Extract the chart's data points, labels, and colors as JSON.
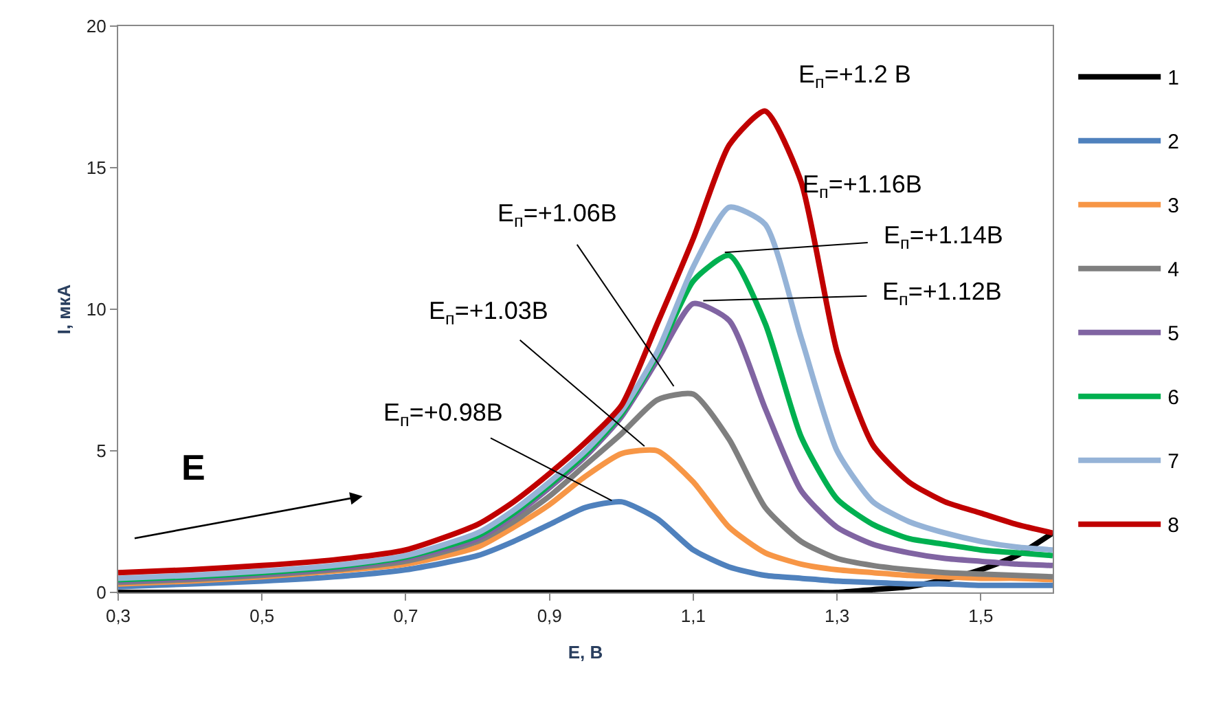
{
  "chart_data": {
    "type": "line",
    "xlabel": "E, В",
    "ylabel": "I, мкА",
    "x": [
      0.3,
      0.4,
      0.5,
      0.6,
      0.7,
      0.8,
      0.85,
      0.9,
      0.95,
      1.0,
      1.05,
      1.1,
      1.15,
      1.2,
      1.25,
      1.3,
      1.35,
      1.4,
      1.45,
      1.5,
      1.55,
      1.6
    ],
    "series": [
      {
        "name": "1",
        "color": "#000000",
        "values": [
          0,
          0,
          0,
          0,
          0,
          0,
          0,
          0,
          0,
          0,
          0,
          0,
          0,
          0,
          0,
          0,
          0.1,
          0.2,
          0.45,
          0.8,
          1.3,
          2.1
        ]
      },
      {
        "name": "2",
        "color": "#4f81bd",
        "values": [
          0.2,
          0.3,
          0.4,
          0.55,
          0.8,
          1.3,
          1.8,
          2.4,
          3.0,
          3.2,
          2.6,
          1.5,
          0.9,
          0.6,
          0.5,
          0.4,
          0.35,
          0.3,
          0.3,
          0.25,
          0.25,
          0.25
        ]
      },
      {
        "name": "3",
        "color": "#f79646",
        "values": [
          0.3,
          0.4,
          0.55,
          0.75,
          1.0,
          1.6,
          2.3,
          3.1,
          4.1,
          4.9,
          5.0,
          3.9,
          2.3,
          1.4,
          1.0,
          0.8,
          0.7,
          0.6,
          0.55,
          0.5,
          0.5,
          0.45
        ]
      },
      {
        "name": "4",
        "color": "#7f7f7f",
        "values": [
          0.35,
          0.45,
          0.6,
          0.8,
          1.1,
          1.8,
          2.5,
          3.4,
          4.5,
          5.6,
          6.8,
          7.0,
          5.4,
          3.0,
          1.8,
          1.2,
          0.95,
          0.8,
          0.7,
          0.65,
          0.6,
          0.55
        ]
      },
      {
        "name": "5",
        "color": "#8064a2",
        "values": [
          0.4,
          0.5,
          0.65,
          0.85,
          1.2,
          1.9,
          2.7,
          3.7,
          4.8,
          6.2,
          8.2,
          10.2,
          9.6,
          6.5,
          3.6,
          2.3,
          1.7,
          1.4,
          1.2,
          1.1,
          1.0,
          0.95
        ]
      },
      {
        "name": "6",
        "color": "#00b050",
        "values": [
          0.45,
          0.55,
          0.7,
          0.9,
          1.25,
          2.0,
          2.8,
          3.8,
          4.9,
          6.3,
          8.4,
          11.0,
          11.9,
          9.5,
          5.5,
          3.3,
          2.4,
          1.9,
          1.7,
          1.5,
          1.4,
          1.3
        ]
      },
      {
        "name": "7",
        "color": "#95b3d7",
        "values": [
          0.5,
          0.6,
          0.75,
          0.95,
          1.3,
          2.1,
          2.9,
          3.9,
          5.0,
          6.4,
          8.5,
          11.5,
          13.6,
          13.0,
          9.0,
          5.0,
          3.2,
          2.5,
          2.1,
          1.8,
          1.6,
          1.5
        ]
      },
      {
        "name": "8",
        "color": "#c00000",
        "values": [
          0.7,
          0.8,
          0.95,
          1.15,
          1.5,
          2.4,
          3.2,
          4.2,
          5.3,
          6.6,
          9.5,
          12.5,
          15.8,
          17.0,
          14.5,
          8.5,
          5.2,
          3.9,
          3.2,
          2.8,
          2.4,
          2.1
        ]
      }
    ],
    "xlim": [
      0.3,
      1.6
    ],
    "xticks": [
      {
        "value": 0.3,
        "label": "0,3"
      },
      {
        "value": 0.5,
        "label": "0,5"
      },
      {
        "value": 0.7,
        "label": "0,7"
      },
      {
        "value": 0.9,
        "label": "0,9"
      },
      {
        "value": 1.1,
        "label": "1,1"
      },
      {
        "value": 1.3,
        "label": "1,3"
      },
      {
        "value": 1.5,
        "label": "1,5"
      }
    ],
    "ylim": [
      0,
      20
    ],
    "yticks": [
      0,
      5,
      10,
      15,
      20
    ],
    "annotations": [
      {
        "text": "E$_{п}$=+0.98В",
        "x": 0.99,
        "y": 3.2
      },
      {
        "text": "E$_{п}$=+1.03В",
        "x": 1.035,
        "y": 5.1
      },
      {
        "text": "E$_{п}$=+1.06В",
        "x": 1.075,
        "y": 7.2
      },
      {
        "text": "E$_{п}$=+1.12В",
        "x": 1.11,
        "y": 10.3
      },
      {
        "text": "E$_{п}$=+1.14В",
        "x": 1.14,
        "y": 12.0
      },
      {
        "text": "E$_{п}$=+1.16В",
        "x": 1.16,
        "y": 13.7
      },
      {
        "text": "E$_{п}$=+1.2 В",
        "x": 1.19,
        "y": 17.0
      },
      "E"
    ],
    "legend": "right",
    "marker": "none",
    "line_style": "solid"
  }
}
